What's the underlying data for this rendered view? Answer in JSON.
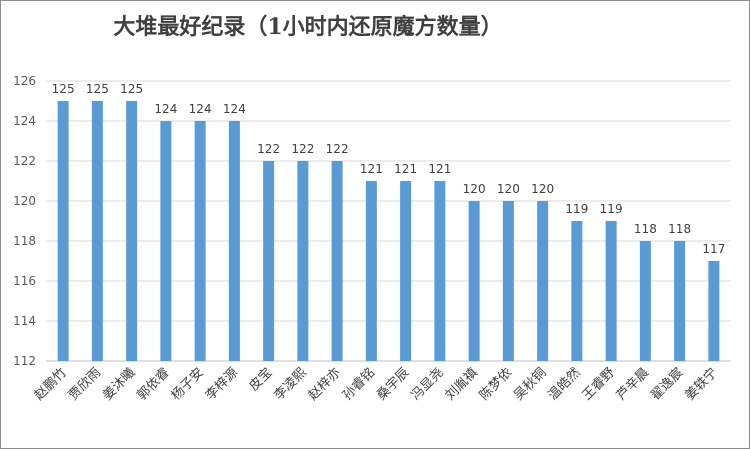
{
  "chart_data": {
    "type": "bar",
    "title": "大堆最好纪录（1小时内还原魔方数量）",
    "xlabel": "",
    "ylabel": "",
    "categories": [
      "赵鹏竹",
      "贾欣雨",
      "姜沐曦",
      "郭依睿",
      "杨子安",
      "李梓源",
      "皮宝",
      "李凌熙",
      "赵梓亦",
      "孙睿铭",
      "桑宇辰",
      "冯显尧",
      "刘胤禛",
      "陈梦依",
      "吴秋铜",
      "温皓然",
      "王睿野",
      "芦辛晨",
      "翟逸宸",
      "姜轶宁"
    ],
    "values": [
      125,
      125,
      125,
      124,
      124,
      124,
      122,
      122,
      122,
      121,
      121,
      121,
      120,
      120,
      120,
      119,
      119,
      118,
      118,
      117
    ],
    "ylim": [
      112,
      126
    ],
    "yticks": [
      112,
      114,
      116,
      118,
      120,
      122,
      124,
      126
    ],
    "grid": true,
    "bar_color": "#5b9bd5",
    "grid_color": "#d9d9d9"
  }
}
